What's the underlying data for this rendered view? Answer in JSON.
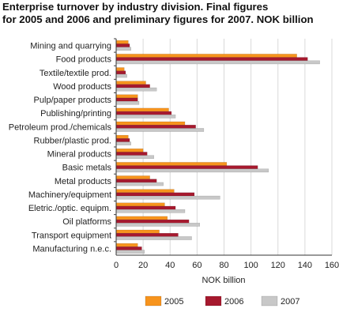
{
  "chart_data": {
    "type": "bar",
    "orientation": "horizontal",
    "title_line1": "Enterprise turnover by industry division. Final figures",
    "title_line2": "for 2005 and 2006 and preliminary figures for 2007. NOK billion",
    "xlabel": "NOK billion",
    "xlim": [
      0,
      160
    ],
    "xticks": [
      0,
      20,
      40,
      60,
      80,
      100,
      120,
      140,
      160
    ],
    "grid": true,
    "legend_position": "bottom",
    "categories": [
      "Mining and quarrying",
      "Food products",
      "Textile/textile prod.",
      "Wood products",
      "Pulp/paper products",
      "Publishing/printing",
      "Petroleum prod./chemicals",
      "Rubber/plastic prod.",
      "Mineral products",
      "Basic metals",
      "Metal products",
      "Machinery/equipment",
      "Eletric./optic. equipm.",
      "Oil platforms",
      "Transport equipment",
      "Manufacturing n.e.c."
    ],
    "series": [
      {
        "name": "2005",
        "color": "#f7941d",
        "values": [
          9,
          134,
          6,
          22,
          16,
          39,
          51,
          9,
          20,
          82,
          25,
          43,
          36,
          38,
          32,
          16
        ]
      },
      {
        "name": "2006",
        "color": "#a6192e",
        "values": [
          10,
          142,
          7,
          25,
          16,
          41,
          59,
          10,
          23,
          105,
          30,
          58,
          44,
          54,
          46,
          19
        ]
      },
      {
        "name": "2007",
        "color": "#c8c8c8",
        "values": [
          11,
          151,
          8,
          30,
          17,
          44,
          65,
          11,
          28,
          113,
          35,
          77,
          51,
          62,
          56,
          21
        ]
      }
    ]
  }
}
